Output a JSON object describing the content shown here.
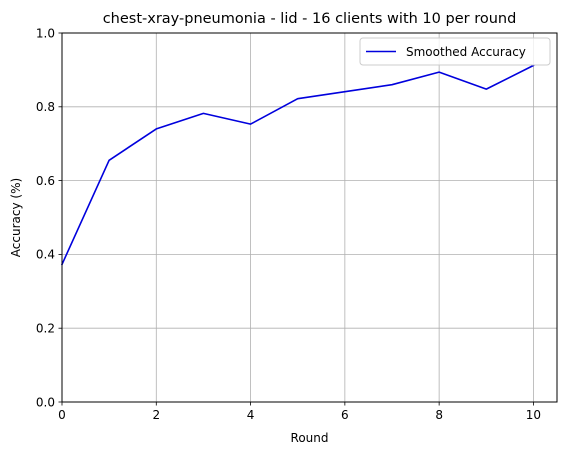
{
  "chart_data": {
    "type": "line",
    "title": "chest-xray-pneumonia - lid - 16 clients with 10 per round",
    "xlabel": "Round",
    "ylabel": "Accuracy (%)",
    "xlim": [
      0,
      10.5
    ],
    "ylim": [
      0,
      1.0
    ],
    "xticks": [
      0,
      2,
      4,
      6,
      8,
      10
    ],
    "yticks": [
      0.0,
      0.2,
      0.4,
      0.6,
      0.8,
      1.0
    ],
    "xtick_labels": [
      "0",
      "2",
      "4",
      "6",
      "8",
      "10"
    ],
    "ytick_labels": [
      "0.0",
      "0.2",
      "0.4",
      "0.6",
      "0.8",
      "1.0"
    ],
    "grid": true,
    "legend_position": "top-right",
    "series": [
      {
        "name": "Smoothed Accuracy",
        "color": "#0000dd",
        "x": [
          0,
          1,
          2,
          3,
          4,
          5,
          6,
          7,
          8,
          9,
          10
        ],
        "y": [
          0.373,
          0.655,
          0.74,
          0.782,
          0.753,
          0.822,
          0.841,
          0.86,
          0.894,
          0.848,
          0.912
        ]
      }
    ]
  }
}
